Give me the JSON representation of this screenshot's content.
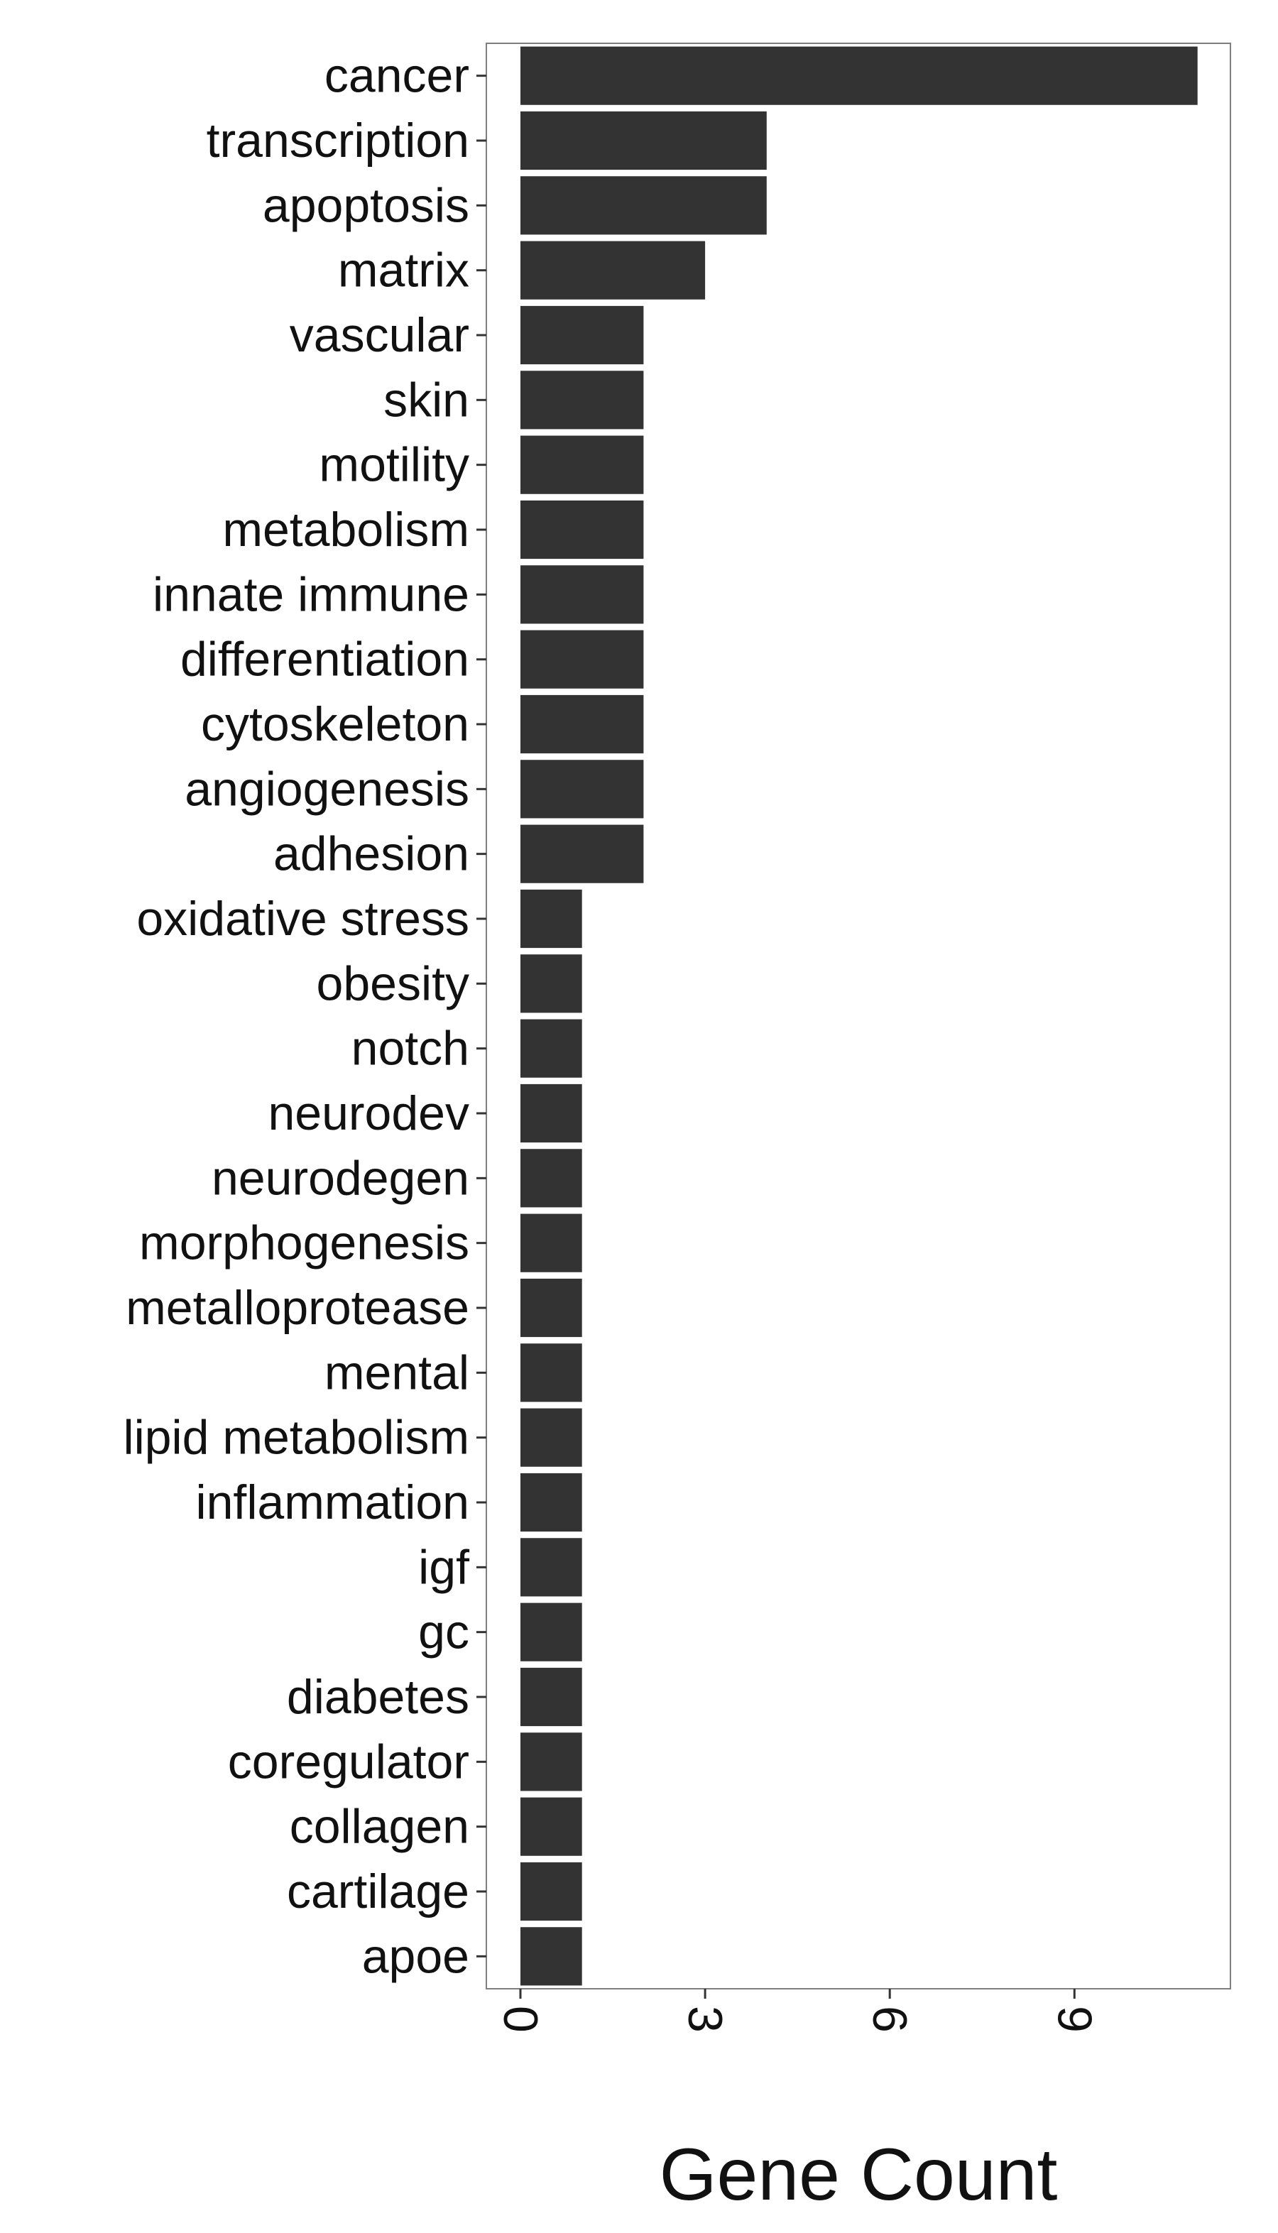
{
  "chart_data": {
    "type": "bar",
    "orientation": "horizontal",
    "title": "",
    "xlabel": "Gene Count",
    "ylabel": "",
    "categories": [
      "cancer",
      "transcription",
      "apoptosis",
      "matrix",
      "vascular",
      "skin",
      "motility",
      "metabolism",
      "innate immune",
      "differentiation",
      "cytoskeleton",
      "angiogenesis",
      "adhesion",
      "oxidative stress",
      "obesity",
      "notch",
      "neurodev",
      "neurodegen",
      "morphogenesis",
      "metalloprotease",
      "mental",
      "lipid metabolism",
      "inflammation",
      "igf",
      "gc",
      "diabetes",
      "coregulator",
      "collagen",
      "cartilage",
      "apoe"
    ],
    "values": [
      11,
      4,
      4,
      3,
      2,
      2,
      2,
      2,
      2,
      2,
      2,
      2,
      2,
      1,
      1,
      1,
      1,
      1,
      1,
      1,
      1,
      1,
      1,
      1,
      1,
      1,
      1,
      1,
      1,
      1
    ],
    "xticks": [
      0,
      3,
      6,
      9
    ],
    "xtick_labels": [
      "0",
      "3",
      "6",
      "9"
    ],
    "xlim": [
      -0.55,
      11.55
    ],
    "grid": false,
    "bar_color": "#333333",
    "panel_border_color": "#7f7f7f"
  }
}
